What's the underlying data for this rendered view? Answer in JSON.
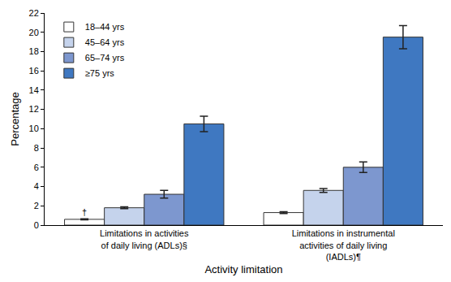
{
  "chart_data": {
    "type": "bar",
    "x_label": "Activity limitation",
    "y_label": "Percentage",
    "categories": [
      "Limitations in activities of daily living (ADLs)§",
      "Limitations in instrumental activities of daily living (IADLs)¶"
    ],
    "series": [
      {
        "name": "18–44 yrs",
        "color": "#ffffff",
        "values": [
          0.6,
          1.3
        ],
        "errors": [
          0.05,
          0.1
        ]
      },
      {
        "name": "45–64 yrs",
        "color": "#c5d3ec",
        "values": [
          1.8,
          3.6
        ],
        "errors": [
          0.1,
          0.2
        ]
      },
      {
        "name": "65–74 yrs",
        "color": "#7d97cf",
        "values": [
          3.2,
          6.0
        ],
        "errors": [
          0.4,
          0.55
        ]
      },
      {
        "name": "≥75 yrs",
        "color": "#3f78c1",
        "values": [
          10.5,
          19.5
        ],
        "errors": [
          0.8,
          1.2
        ]
      }
    ],
    "annotations": [
      {
        "text": "†",
        "category": 0,
        "series": "18–44 yrs"
      }
    ],
    "ylim": [
      0,
      22
    ],
    "yticks": [
      0,
      2,
      4,
      6,
      8,
      10,
      12,
      14,
      16,
      18,
      20,
      22
    ],
    "grid": false,
    "legend": "upper left"
  }
}
